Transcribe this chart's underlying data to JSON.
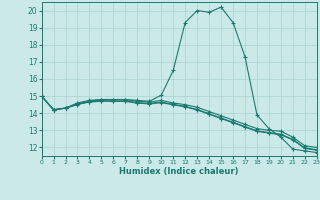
{
  "xlabel": "Humidex (Indice chaleur)",
  "xlim": [
    0,
    23
  ],
  "ylim": [
    11.5,
    20.5
  ],
  "yticks": [
    12,
    13,
    14,
    15,
    16,
    17,
    18,
    19,
    20
  ],
  "xticks": [
    0,
    1,
    2,
    3,
    4,
    5,
    6,
    7,
    8,
    9,
    10,
    11,
    12,
    13,
    14,
    15,
    16,
    17,
    18,
    19,
    20,
    21,
    22,
    23
  ],
  "background_color": "#cce9e9",
  "grid_color": "#aad0d0",
  "line_color": "#1a7a6e",
  "lines": [
    {
      "x": [
        0,
        1,
        2,
        3,
        4,
        5,
        6,
        7,
        8,
        9,
        10,
        11,
        12,
        13,
        14,
        15,
        16,
        17,
        18,
        19,
        20,
        21,
        22,
        23
      ],
      "y": [
        15.0,
        14.2,
        14.3,
        14.5,
        14.7,
        14.8,
        14.8,
        14.8,
        14.75,
        14.7,
        15.05,
        16.5,
        19.3,
        20.0,
        19.9,
        20.2,
        19.3,
        17.3,
        13.9,
        13.1,
        12.6,
        11.9,
        11.8,
        11.7
      ]
    },
    {
      "x": [
        0,
        1,
        2,
        3,
        4,
        5,
        6,
        7,
        8,
        9,
        10,
        11,
        12,
        13,
        14,
        15,
        16,
        17,
        18,
        19,
        20,
        21,
        22,
        23
      ],
      "y": [
        15.0,
        14.2,
        14.3,
        14.6,
        14.75,
        14.8,
        14.8,
        14.8,
        14.7,
        14.65,
        14.75,
        14.6,
        14.5,
        14.35,
        14.1,
        13.85,
        13.6,
        13.35,
        13.1,
        13.0,
        12.95,
        12.6,
        12.1,
        12.0
      ]
    },
    {
      "x": [
        0,
        1,
        2,
        3,
        4,
        5,
        6,
        7,
        8,
        9,
        10,
        11,
        12,
        13,
        14,
        15,
        16,
        17,
        18,
        19,
        20,
        21,
        22,
        23
      ],
      "y": [
        15.0,
        14.2,
        14.3,
        14.55,
        14.68,
        14.73,
        14.72,
        14.72,
        14.62,
        14.57,
        14.65,
        14.52,
        14.4,
        14.22,
        13.97,
        13.72,
        13.47,
        13.22,
        12.97,
        12.87,
        12.77,
        12.47,
        11.97,
        11.87
      ]
    },
    {
      "x": [
        0,
        1,
        2,
        3,
        4,
        5,
        6,
        7,
        8,
        9,
        10,
        11,
        12,
        13,
        14,
        15,
        16,
        17,
        18,
        19,
        20,
        21,
        22,
        23
      ],
      "y": [
        15.0,
        14.2,
        14.3,
        14.52,
        14.65,
        14.7,
        14.69,
        14.69,
        14.59,
        14.54,
        14.62,
        14.49,
        14.37,
        14.19,
        13.94,
        13.69,
        13.44,
        13.19,
        12.94,
        12.84,
        12.74,
        12.44,
        11.94,
        11.84
      ]
    }
  ]
}
